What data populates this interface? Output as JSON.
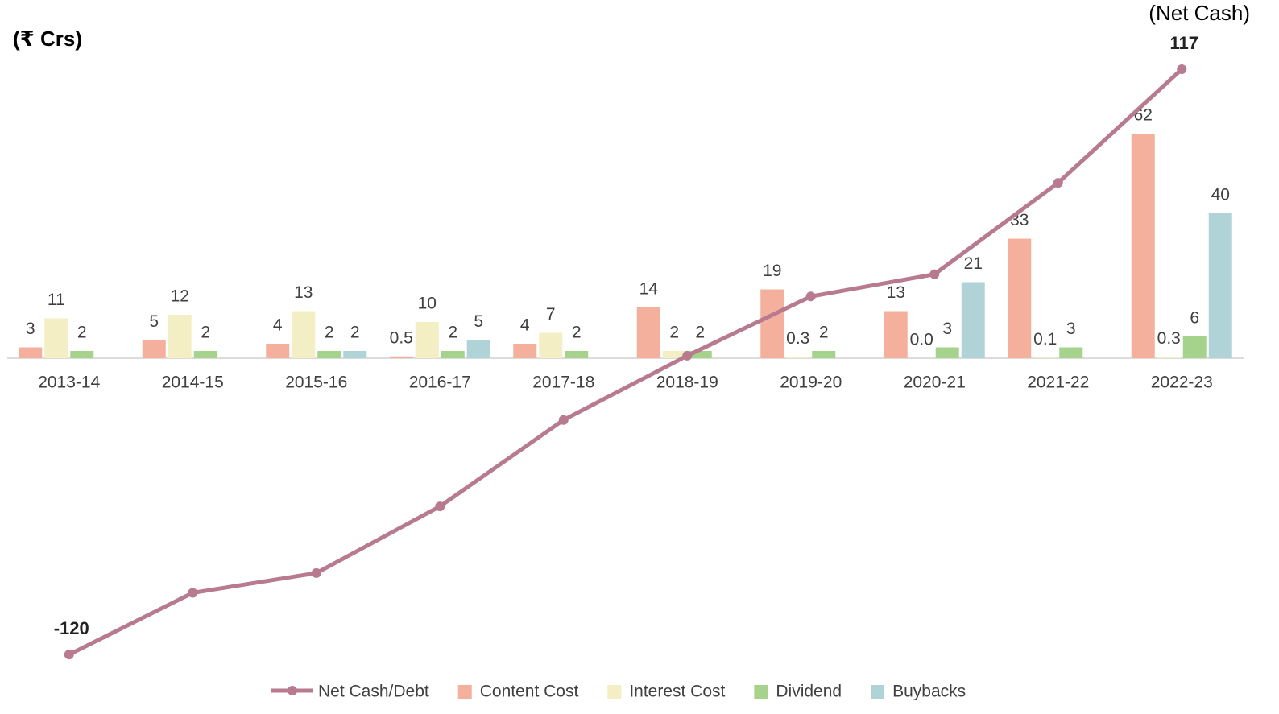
{
  "chart_data": {
    "type": "bar",
    "annotations": [
      "(₹ Crs)",
      "(Net Cash)"
    ],
    "categories": [
      "2013-14",
      "2014-15",
      "2015-16",
      "2016-17",
      "2017-18",
      "2018-19",
      "2019-20",
      "2020-21",
      "2021-22",
      "2022-23"
    ],
    "series": [
      {
        "name": "Net Cash/Debt",
        "type": "line",
        "axis": "y2",
        "color": "#b87a8e",
        "values": [
          -120,
          -95,
          -87,
          -60,
          -25,
          1,
          25,
          34,
          71,
          117
        ],
        "value_labels": [
          "-120",
          null,
          null,
          null,
          null,
          null,
          null,
          null,
          null,
          "117"
        ]
      },
      {
        "name": "Content Cost",
        "color": "#f4b09c",
        "values": [
          3,
          5,
          4,
          0.5,
          4,
          14,
          19,
          13,
          33,
          62
        ]
      },
      {
        "name": "Interest Cost",
        "color": "#f3eec4",
        "values": [
          11,
          12,
          13,
          10,
          7,
          2,
          0.3,
          0,
          0.1,
          0.3
        ],
        "value_labels": [
          "11",
          "12",
          "13",
          "10",
          "7",
          "2",
          "0.3",
          "0.0",
          "0.1",
          "0.3"
        ]
      },
      {
        "name": "Dividend",
        "color": "#a6d38c",
        "values": [
          2,
          2,
          2,
          2,
          2,
          2,
          2,
          3,
          3,
          6
        ]
      },
      {
        "name": "Buybacks",
        "color": "#b0d3d8",
        "values": [
          null,
          null,
          2,
          5,
          null,
          null,
          null,
          21,
          null,
          40
        ]
      }
    ],
    "ylim": [
      -90,
      90
    ],
    "y2lim": [
      -132,
      132
    ]
  }
}
